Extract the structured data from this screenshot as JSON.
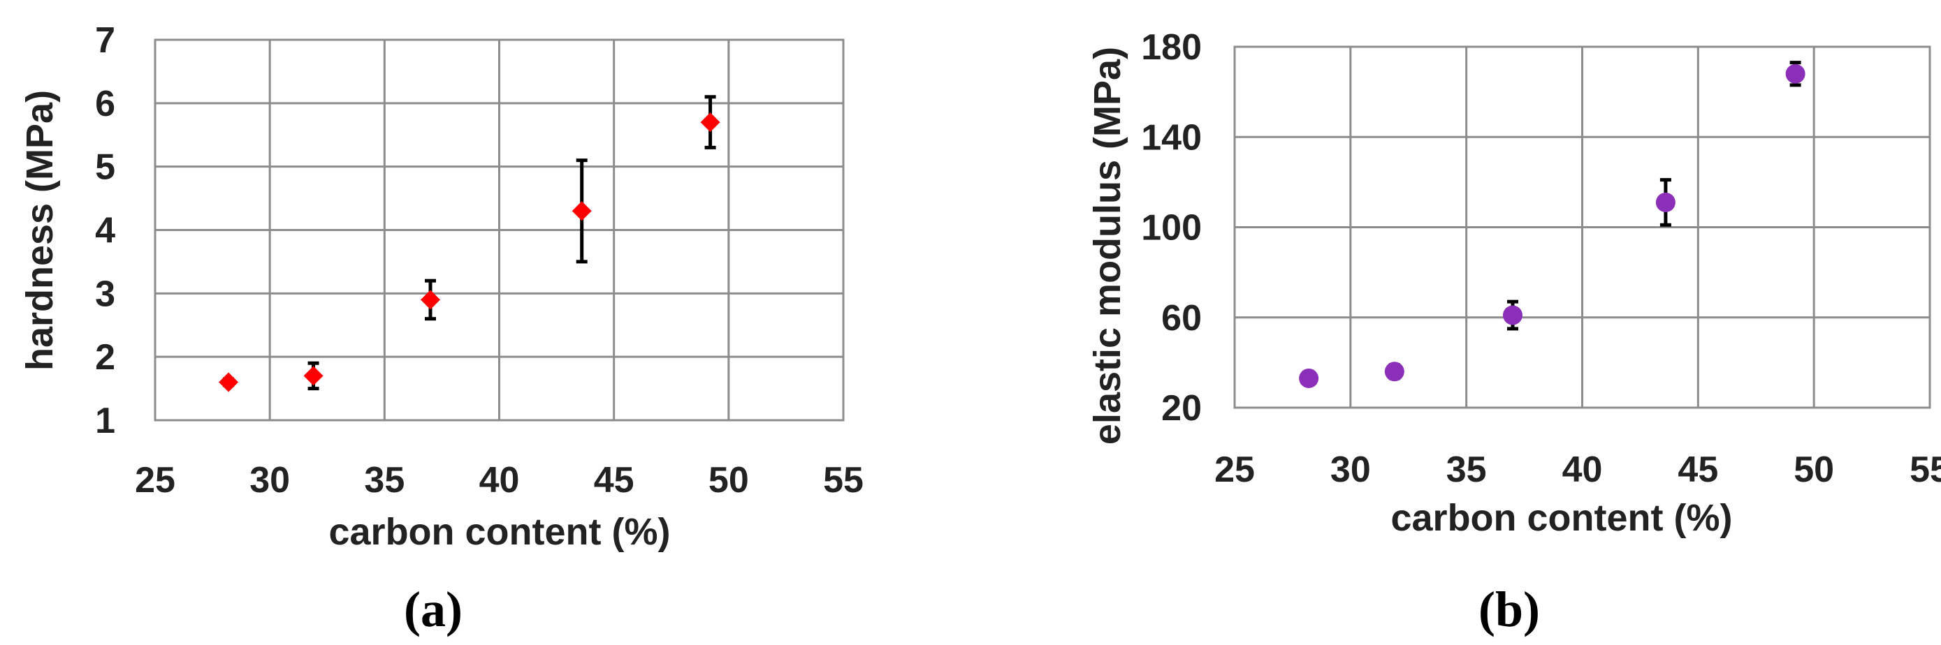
{
  "chart_data": [
    {
      "type": "scatter",
      "panel_label": "(a)",
      "xlabel": "carbon content (%)",
      "ylabel": "hardness (MPa)",
      "xlim": [
        25,
        55
      ],
      "ylim": [
        1,
        7
      ],
      "x_ticks": [
        "25",
        "30",
        "35",
        "40",
        "45",
        "50",
        "55"
      ],
      "y_ticks": [
        "1",
        "2",
        "3",
        "4",
        "5",
        "6",
        "7"
      ],
      "grid": true,
      "marker": "diamond",
      "color": "#ff0000",
      "points": [
        {
          "x": 28.2,
          "y": 1.6,
          "err": 0.05
        },
        {
          "x": 31.9,
          "y": 1.7,
          "err": 0.2
        },
        {
          "x": 37.0,
          "y": 2.9,
          "err": 0.3
        },
        {
          "x": 43.6,
          "y": 4.3,
          "err": 0.8
        },
        {
          "x": 49.2,
          "y": 5.7,
          "err": 0.4
        }
      ]
    },
    {
      "type": "scatter",
      "panel_label": "(b)",
      "xlabel": "carbon content (%)",
      "ylabel": "elastic modulus (MPa)",
      "xlim": [
        25,
        55
      ],
      "ylim": [
        20,
        180
      ],
      "x_ticks": [
        "25",
        "30",
        "35",
        "40",
        "45",
        "50",
        "55"
      ],
      "y_ticks": [
        "20",
        "60",
        "100",
        "140",
        "180"
      ],
      "grid": true,
      "marker": "circle",
      "color": "#8b2fb8",
      "points": [
        {
          "x": 28.2,
          "y": 33,
          "err": 1
        },
        {
          "x": 31.9,
          "y": 36,
          "err": 3
        },
        {
          "x": 37.0,
          "y": 61,
          "err": 6
        },
        {
          "x": 43.6,
          "y": 111,
          "err": 10
        },
        {
          "x": 49.2,
          "y": 168,
          "err": 5
        }
      ]
    }
  ]
}
